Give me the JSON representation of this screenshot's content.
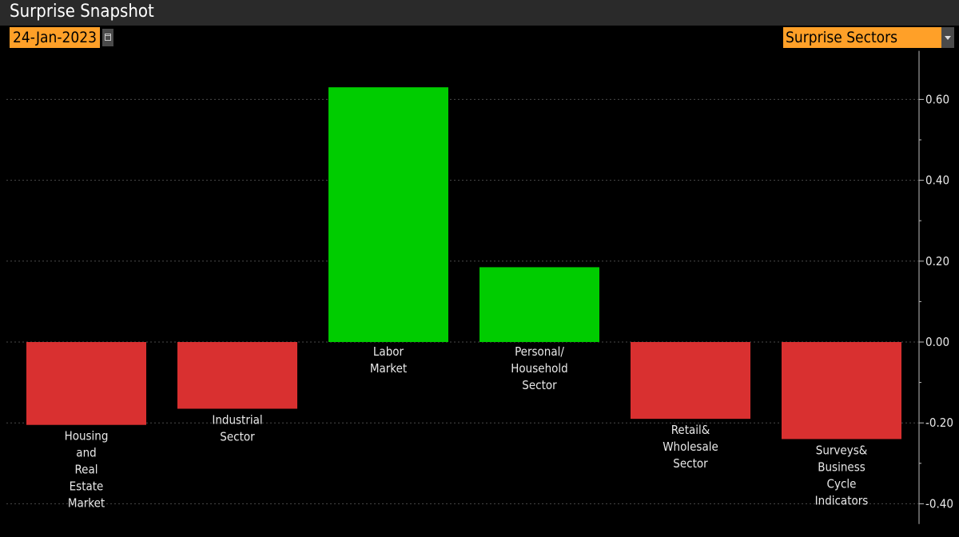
{
  "header": {
    "title": "Surprise Snapshot",
    "date": "24-Jan-2023",
    "selector": "Surprise Sectors"
  },
  "icons": {
    "calendar": "calendar-icon",
    "dropdown": "chevron-down-icon"
  },
  "colors": {
    "positive": "#00cc00",
    "negative": "#d93030",
    "accent": "#ffa028"
  },
  "chart_data": {
    "type": "bar",
    "title": "",
    "xlabel": "",
    "ylabel": "",
    "ylim": [
      -0.45,
      0.72
    ],
    "yticks": [
      0.6,
      0.4,
      0.2,
      0.0,
      -0.2,
      -0.4
    ],
    "ytick_labels": [
      "0.60",
      "0.40",
      "0.20",
      "0.00",
      "-0.20",
      "-0.40"
    ],
    "grid": true,
    "axis_position": "right",
    "categories": [
      "Housing and Real Estate Market",
      "Industrial Sector",
      "Labor Market",
      "Personal/ Household Sector",
      "Retail& Wholesale Sector",
      "Surveys& Business Cycle Indicators"
    ],
    "category_lines": [
      [
        "Housing",
        "and",
        "Real",
        "Estate",
        "Market"
      ],
      [
        "Industrial",
        "Sector"
      ],
      [
        "Labor",
        "Market"
      ],
      [
        "Personal/",
        "Household",
        "Sector"
      ],
      [
        "Retail&",
        "Wholesale",
        "Sector"
      ],
      [
        "Surveys&",
        "Business",
        "Cycle",
        "Indicators"
      ]
    ],
    "values": [
      -0.205,
      -0.165,
      0.63,
      0.185,
      -0.19,
      -0.24
    ]
  }
}
